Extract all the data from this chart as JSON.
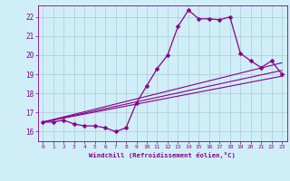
{
  "xlabel": "Windchill (Refroidissement éolien,°C)",
  "background_color": "#d0eef8",
  "grid_color": "#b0c8d8",
  "line_color": "#880088",
  "x_ticks": [
    0,
    1,
    2,
    3,
    4,
    5,
    6,
    7,
    8,
    9,
    10,
    11,
    12,
    13,
    14,
    15,
    16,
    17,
    18,
    19,
    20,
    21,
    22,
    23
  ],
  "ylim": [
    15.5,
    22.6
  ],
  "xlim": [
    -0.5,
    23.5
  ],
  "curve1_x": [
    0,
    1,
    2,
    3,
    4,
    5,
    6,
    7,
    8,
    9,
    10,
    11,
    12,
    13,
    14,
    15,
    16,
    17,
    18,
    19,
    20,
    21,
    22,
    23
  ],
  "curve1_y": [
    16.5,
    16.5,
    16.6,
    16.4,
    16.3,
    16.3,
    16.2,
    16.0,
    16.2,
    17.5,
    18.4,
    19.3,
    20.0,
    21.5,
    22.35,
    21.9,
    21.9,
    21.85,
    22.0,
    20.1,
    19.7,
    19.35,
    19.7,
    19.0
  ],
  "curve2_x": [
    0,
    23
  ],
  "curve2_y": [
    16.5,
    19.2
  ],
  "curve3_x": [
    0,
    23
  ],
  "curve3_y": [
    16.5,
    19.6
  ],
  "curve4_x": [
    0,
    23
  ],
  "curve4_y": [
    16.5,
    18.9
  ]
}
